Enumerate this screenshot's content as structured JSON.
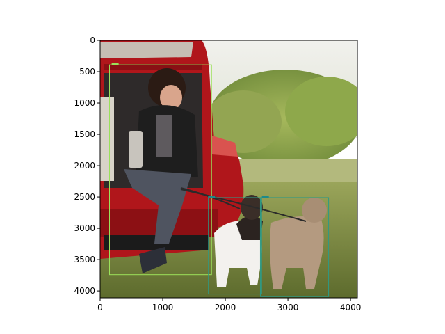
{
  "chart_data": {
    "type": "image",
    "title": "",
    "xlabel": "",
    "ylabel": "",
    "xlim": [
      0,
      4110
    ],
    "ylim": [
      4110,
      0
    ],
    "xticks": [
      0,
      1000,
      2000,
      3000,
      4000
    ],
    "yticks": [
      0,
      500,
      1000,
      1500,
      2000,
      2500,
      3000,
      3500,
      4000
    ],
    "xtick_labels": [
      "0",
      "1000",
      "2000",
      "3000",
      "4000"
    ],
    "ytick_labels": [
      "0",
      "500",
      "1000",
      "1500",
      "2000",
      "2500",
      "3000",
      "3500",
      "4000"
    ],
    "image_content": "photo: woman seated in open trunk of a red car holding a thermos, two French bulldogs on leashes in a grassy field with trees",
    "boxes": [
      {
        "x0": 150,
        "y0": 390,
        "x1": 1780,
        "y1": 3740,
        "color": "#9be15a"
      },
      {
        "x0": 1730,
        "y0": 2510,
        "x1": 2580,
        "y1": 4050,
        "color": "#2e9a86"
      },
      {
        "x0": 2560,
        "y0": 2510,
        "x1": 3650,
        "y1": 4090,
        "color": "#2e9a86"
      }
    ],
    "box_tags": [
      {
        "x": 240,
        "y": 380,
        "color": "#9be15a"
      },
      {
        "x": 1780,
        "y": 2500,
        "color": "#1d8a8a"
      },
      {
        "x": 2640,
        "y": 2500,
        "color": "#1d8a8a"
      }
    ]
  }
}
